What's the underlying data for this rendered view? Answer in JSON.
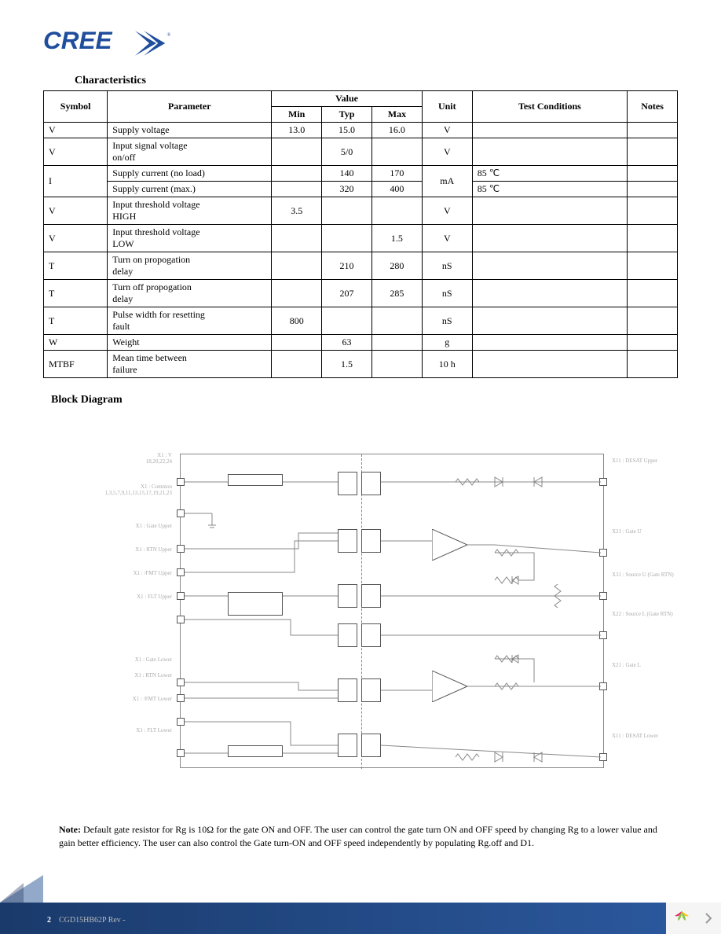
{
  "logo_text": "CREE",
  "char_title": "Characteristics",
  "table": {
    "headers": {
      "symbol": "Symbol",
      "parameter": "Parameter",
      "value": "Value",
      "min": "Min",
      "typ": "Typ",
      "max": "Max",
      "unit": "Unit",
      "test": "Test Conditions",
      "notes": "Notes"
    },
    "rows": [
      {
        "sym": "V",
        "sub": "",
        "param": "Supply voltage",
        "min": "13.0",
        "typ": "15.0",
        "max": "16.0",
        "unit": "V",
        "cond": "",
        "notes": ""
      },
      {
        "sym": "V",
        "sub": "",
        "param": "Input signal voltage\non/off",
        "min": "",
        "typ": "5/0",
        "max": "",
        "unit": "V",
        "cond": "",
        "notes": ""
      },
      {
        "sym": "I",
        "sub": "",
        "param": "Supply current (no load)",
        "min": "",
        "typ": "140",
        "max": "170",
        "unit": "mA",
        "cond": "85 ℃",
        "notes": "",
        "rowspan_sym": 2,
        "rowspan_unit": 2
      },
      {
        "param": "Supply current (max.)",
        "min": "",
        "typ": "320",
        "max": "400",
        "cond": "85 ℃",
        "notes": ""
      },
      {
        "sym": "V",
        "sub": "",
        "param": "Input threshold voltage\nHIGH",
        "min": "3.5",
        "typ": "",
        "max": "",
        "unit": "V",
        "cond": "",
        "notes": ""
      },
      {
        "sym": "V",
        "sub": "",
        "param": "Input threshold voltage\nLOW",
        "min": "",
        "typ": "",
        "max": "1.5",
        "unit": "V",
        "cond": "",
        "notes": ""
      },
      {
        "sym": "T",
        "sub": "",
        "param": "Turn on propogation\ndelay",
        "min": "",
        "typ": "210",
        "max": "280",
        "unit": "nS",
        "cond": "",
        "notes": ""
      },
      {
        "sym": "T",
        "sub": "",
        "param": "Turn off propogation\ndelay",
        "min": "",
        "typ": "207",
        "max": "285",
        "unit": "nS",
        "cond": "",
        "notes": ""
      },
      {
        "sym": "T",
        "sub": "",
        "param": "Pulse width for resetting\nfault",
        "min": "800",
        "typ": "",
        "max": "",
        "unit": "nS",
        "cond": "",
        "notes": ""
      },
      {
        "sym": "W",
        "sub": "",
        "param": "Weight",
        "min": "",
        "typ": "63",
        "max": "",
        "unit": "g",
        "cond": "",
        "notes": ""
      },
      {
        "sym": "MTBF",
        "sub": "",
        "param": "Mean time between\nfailure",
        "min": "",
        "typ": "1.5",
        "max": "",
        "unit": "10  h",
        "cond": "",
        "notes": ""
      }
    ]
  },
  "block_title": "Block Diagram",
  "note_label": "Note:",
  "note_text": " Default gate resistor for Rg is 10Ω for the gate ON and OFF. The user can control the gate turn ON and OFF speed by changing Rg to a lower value and gain better efficiency. The user can also control the Gate turn-ON and OFF speed independently by populating Rg.off and D1.",
  "footer": {
    "page": "2",
    "doc": "CGD15HB62P Rev -"
  },
  "diagram_labels": {
    "l1": "X1 : V",
    "l1b": "18,20,22,24",
    "l2": "X1 : Common",
    "l2b": "1,3,5,7,9,11,13,15,17,19,21,23",
    "l3": "X1 : Gate Upper",
    "l4": "X1 : RTN Upper",
    "l5": "X1 : /FMT Upper",
    "l6": "X1 : FLT Upper",
    "l7": "X1 : Gate Lower",
    "l8": "X1 : RTN Lower",
    "l9": "X1 : /FMT Lower",
    "l10": "X1 : FLT Lower",
    "r1": "X11 : DESAT Upper",
    "r2": "X21 : Gate U",
    "r3": "X31 : Source U (Gate RTN)",
    "r4": "X22 : Source L (Gate RTN)",
    "r5": "X21 : Gate L",
    "r6": "X11 : DESAT Lower"
  }
}
